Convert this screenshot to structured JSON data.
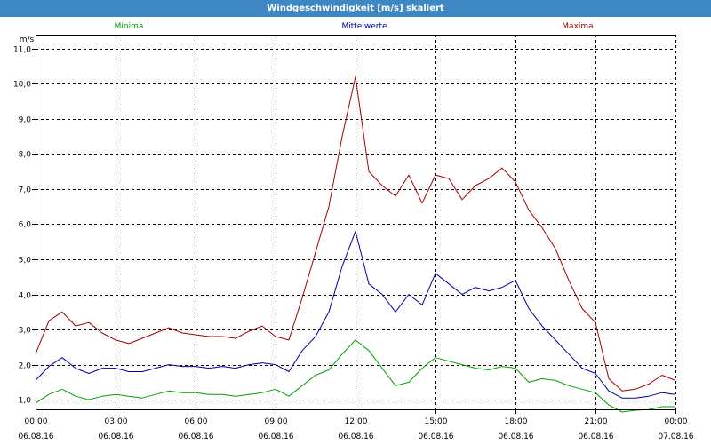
{
  "window": {
    "title": "Windgeschwindigkeit [m/s] skaliert"
  },
  "chart_data": {
    "type": "line",
    "title": "Windgeschwindigkeit [m/s] skaliert",
    "ylabel": "m/s",
    "xlabel": "",
    "ylim": [
      0.7,
      11.4
    ],
    "xlim": [
      0,
      24
    ],
    "grid": true,
    "legend": "top",
    "y_ticks": [
      1.0,
      2.0,
      3.0,
      4.0,
      5.0,
      6.0,
      7.0,
      8.0,
      9.0,
      10.0,
      11.0
    ],
    "y_tick_labels": [
      "1,0",
      "2,0",
      "3,0",
      "4,0",
      "5,0",
      "6,0",
      "7,0",
      "8,0",
      "9,0",
      "10,0",
      "11,0"
    ],
    "x_ticks": [
      {
        "x": 0,
        "time": "00:00",
        "date": "06.08.16"
      },
      {
        "x": 3,
        "time": "03:00",
        "date": "06.08.16"
      },
      {
        "x": 6,
        "time": "06:00",
        "date": "06.08.16"
      },
      {
        "x": 9,
        "time": "09:00",
        "date": "06.08.16"
      },
      {
        "x": 12,
        "time": "12:00",
        "date": "06.08.16"
      },
      {
        "x": 15,
        "time": "15:00",
        "date": "06.08.16"
      },
      {
        "x": 18,
        "time": "18:00",
        "date": "06.08.16"
      },
      {
        "x": 21,
        "time": "21:00",
        "date": "06.08.16"
      },
      {
        "x": 24,
        "time": "00:00",
        "date": "07.08.16"
      }
    ],
    "x": [
      0,
      0.5,
      1,
      1.5,
      2,
      2.5,
      3,
      3.5,
      4,
      4.5,
      5,
      5.5,
      6,
      6.5,
      7,
      7.5,
      8,
      8.5,
      9,
      9.5,
      10,
      10.5,
      11,
      11.5,
      12,
      12.5,
      13,
      13.5,
      14,
      14.5,
      15,
      15.5,
      16,
      16.5,
      17,
      17.5,
      18,
      18.5,
      19,
      19.5,
      20,
      20.5,
      21,
      21.5,
      22,
      22.5,
      23,
      23.5,
      24
    ],
    "series": [
      {
        "name": "Minima",
        "color": "#00a000",
        "values": [
          0.9,
          1.15,
          1.3,
          1.1,
          1.0,
          1.1,
          1.15,
          1.1,
          1.05,
          1.15,
          1.25,
          1.2,
          1.2,
          1.15,
          1.15,
          1.1,
          1.15,
          1.2,
          1.3,
          1.1,
          1.4,
          1.7,
          1.85,
          2.3,
          2.7,
          2.4,
          1.9,
          1.4,
          1.5,
          1.9,
          2.2,
          2.1,
          2.0,
          1.9,
          1.85,
          1.95,
          1.9,
          1.5,
          1.6,
          1.55,
          1.4,
          1.3,
          1.2,
          0.85,
          0.65,
          0.7,
          0.72,
          0.8,
          0.8
        ]
      },
      {
        "name": "Mittelwerte",
        "color": "#0000a0",
        "values": [
          1.55,
          1.95,
          2.2,
          1.9,
          1.75,
          1.9,
          1.9,
          1.8,
          1.8,
          1.9,
          2.0,
          1.95,
          1.95,
          1.9,
          1.95,
          1.9,
          2.0,
          2.05,
          2.0,
          1.8,
          2.4,
          2.8,
          3.5,
          4.8,
          5.8,
          4.3,
          4.0,
          3.5,
          4.0,
          3.7,
          4.6,
          4.3,
          4.0,
          4.2,
          4.1,
          4.2,
          4.4,
          3.6,
          3.1,
          2.7,
          2.3,
          1.9,
          1.75,
          1.25,
          1.05,
          1.05,
          1.1,
          1.2,
          1.15
        ]
      },
      {
        "name": "Maxima",
        "color": "#a00000",
        "values": [
          2.3,
          3.25,
          3.5,
          3.1,
          3.2,
          2.9,
          2.7,
          2.6,
          2.75,
          2.9,
          3.05,
          2.9,
          2.85,
          2.8,
          2.8,
          2.75,
          2.95,
          3.1,
          2.8,
          2.7,
          3.9,
          5.2,
          6.5,
          8.5,
          10.2,
          7.5,
          7.1,
          6.8,
          7.4,
          6.6,
          7.4,
          7.3,
          6.7,
          7.1,
          7.3,
          7.6,
          7.2,
          6.4,
          5.9,
          5.3,
          4.4,
          3.6,
          3.2,
          1.6,
          1.25,
          1.3,
          1.45,
          1.7,
          1.55
        ]
      }
    ]
  }
}
